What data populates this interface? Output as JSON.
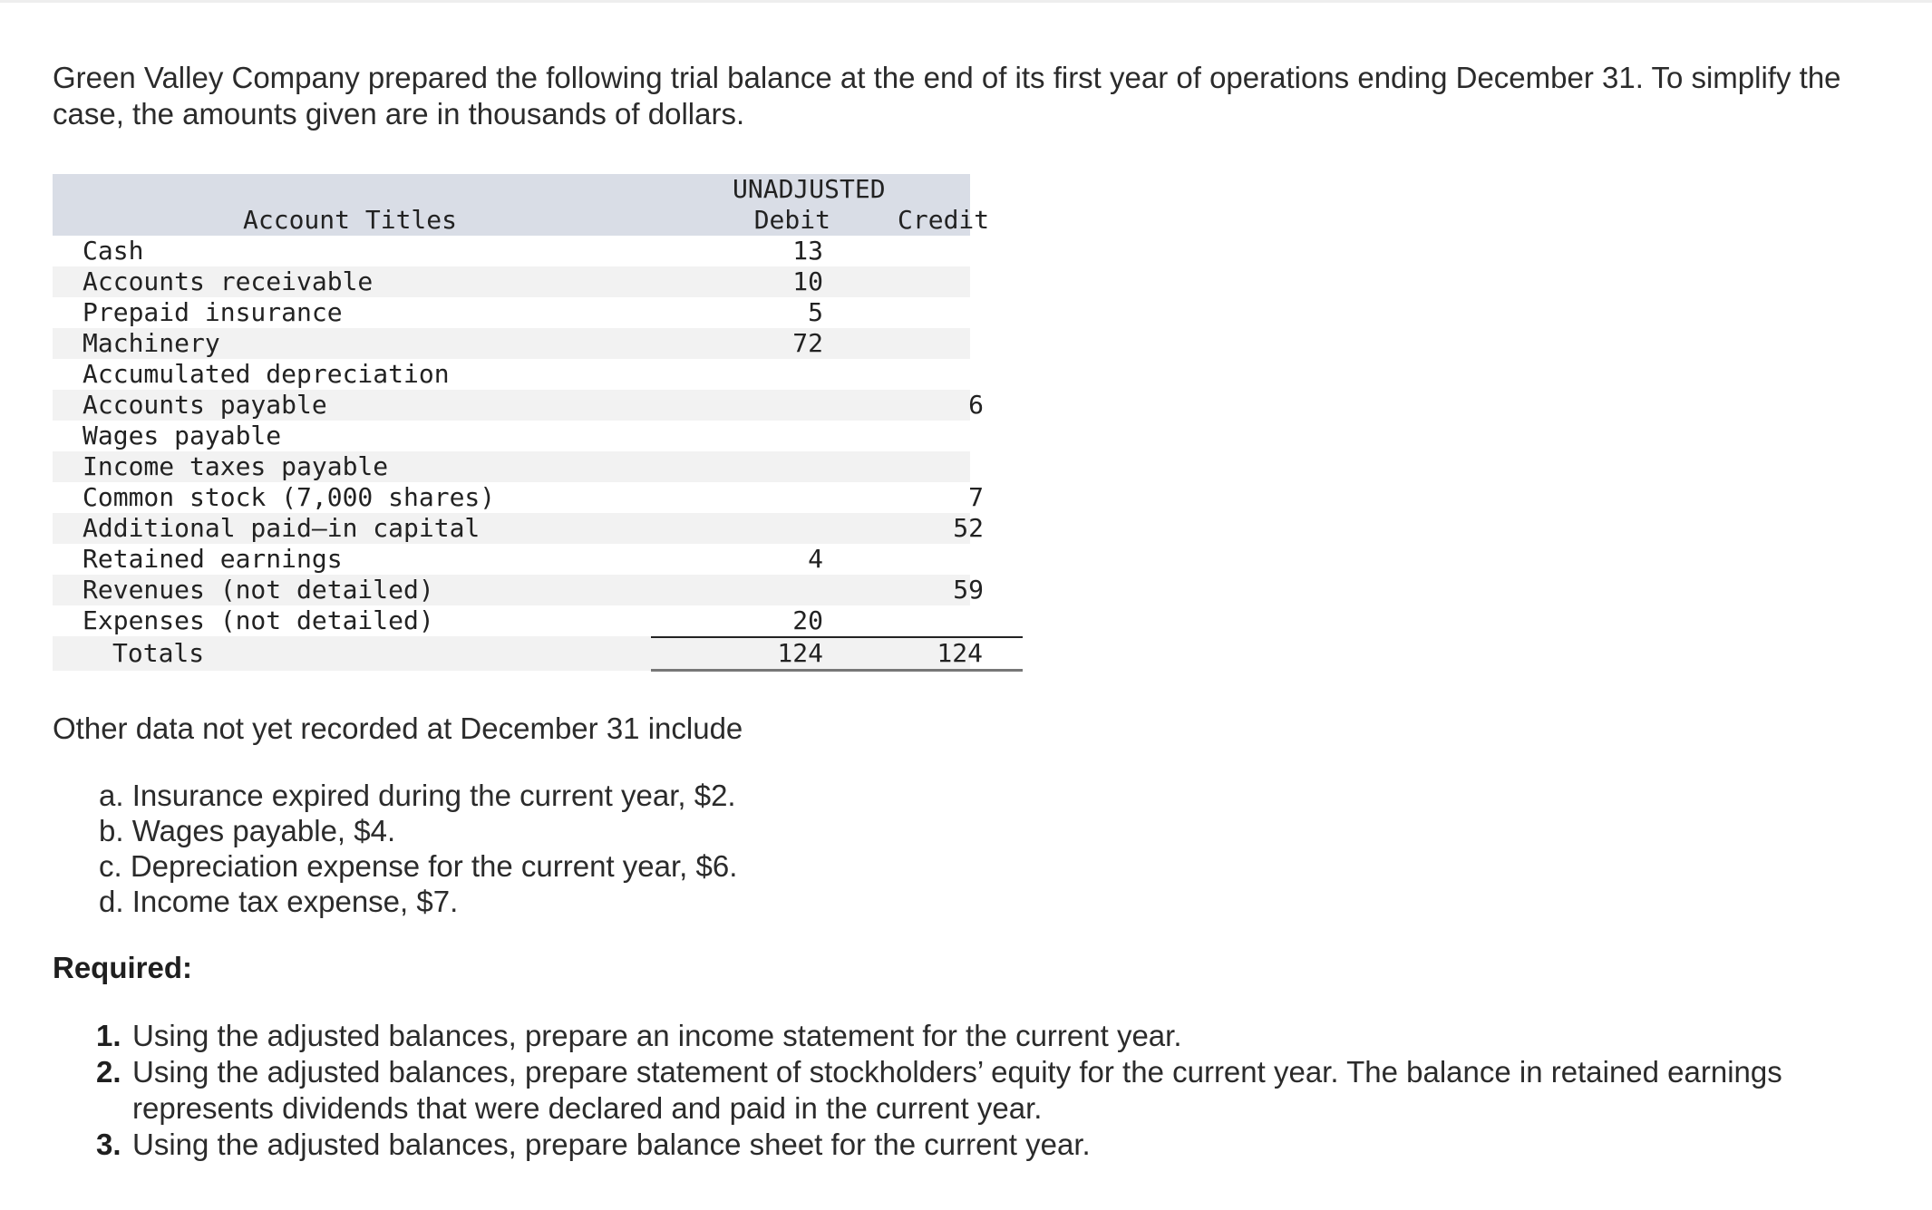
{
  "intro": "Green Valley Company prepared the following trial balance at the end of its first year of operations ending December 31. To simplify the case, the amounts given are in thousands of dollars.",
  "table": {
    "group_header": "UNADJUSTED",
    "col_account": "Account Titles",
    "col_debit": "Debit",
    "col_credit": "Credit",
    "rows": [
      {
        "account": "Cash",
        "debit": "13",
        "credit": ""
      },
      {
        "account": "Accounts receivable",
        "debit": "10",
        "credit": ""
      },
      {
        "account": "Prepaid insurance",
        "debit": "5",
        "credit": ""
      },
      {
        "account": "Machinery",
        "debit": "72",
        "credit": ""
      },
      {
        "account": "Accumulated depreciation",
        "debit": "",
        "credit": ""
      },
      {
        "account": "Accounts payable",
        "debit": "",
        "credit": "6"
      },
      {
        "account": "Wages payable",
        "debit": "",
        "credit": ""
      },
      {
        "account": "Income taxes payable",
        "debit": "",
        "credit": ""
      },
      {
        "account": "Common stock (7,000 shares)",
        "debit": "",
        "credit": "7"
      },
      {
        "account": "Additional paid–in capital",
        "debit": "",
        "credit": "52"
      },
      {
        "account": "Retained earnings",
        "debit": "4",
        "credit": ""
      },
      {
        "account": "Revenues (not detailed)",
        "debit": "",
        "credit": "59"
      },
      {
        "account": "Expenses (not detailed)",
        "debit": "20",
        "credit": ""
      }
    ],
    "total": {
      "label": "Totals",
      "debit": "124",
      "credit": "124"
    }
  },
  "other_data": "Other data not yet recorded at December 31 include",
  "adjustments": [
    "a. Insurance expired during the current year, $2.",
    "b. Wages payable, $4.",
    "c. Depreciation expense for the current year, $6.",
    "d. Income tax expense, $7."
  ],
  "required_label": "Required:",
  "requirements": [
    {
      "num": "1.",
      "text": "Using the adjusted balances, prepare an income statement for the current year."
    },
    {
      "num": "2.",
      "text": "Using the adjusted balances, prepare statement of stockholders’ equity for the current year. The balance in retained earnings represents dividends that were declared and paid in the current year."
    },
    {
      "num": "3.",
      "text": "Using the adjusted balances, prepare balance sheet for the current year."
    }
  ]
}
